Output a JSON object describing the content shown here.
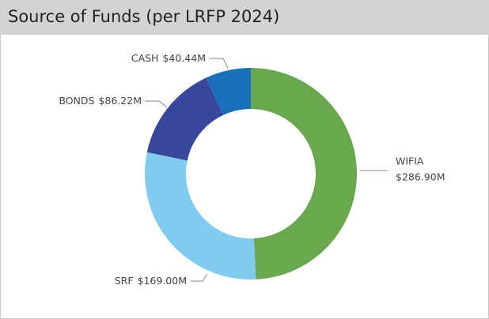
{
  "chart_data": {
    "type": "donut",
    "title": "Source of Funds (per LRFP 2024)",
    "categories": [
      "WIFIA",
      "SRF",
      "BONDS",
      "CASH"
    ],
    "values": [
      286.9,
      169.0,
      86.22,
      40.44
    ],
    "value_labels": [
      "$286.90M",
      "$169.00M",
      "$86.22M",
      "$40.44M"
    ],
    "colors": [
      "#69a84f",
      "#80cbf0",
      "#39479a",
      "#1a6fbd"
    ]
  }
}
